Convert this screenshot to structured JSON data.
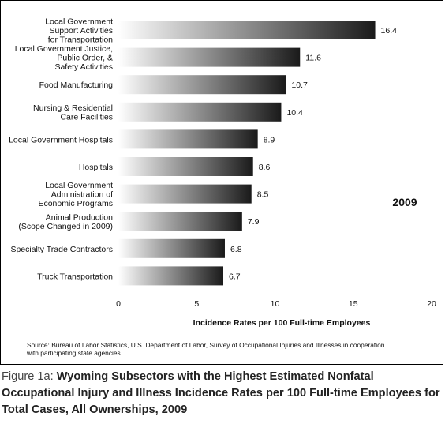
{
  "chart_data": {
    "type": "bar",
    "orientation": "horizontal",
    "categories": [
      [
        "Local Government",
        "Support Activities",
        "for Transportation"
      ],
      [
        "Local Government Justice,",
        "Public Order, &",
        "Safety Activities"
      ],
      [
        "Food Manufacturing"
      ],
      [
        "Nursing & Residential",
        "Care Facilities"
      ],
      [
        "Local Government Hospitals"
      ],
      [
        "Hospitals"
      ],
      [
        "Local Government",
        "Administration of",
        "Economic Programs"
      ],
      [
        "Animal Production",
        "(Scope Changed in 2009)"
      ],
      [
        "Specialty Trade Contractors"
      ],
      [
        "Truck Transportation"
      ]
    ],
    "values": [
      16.4,
      11.6,
      10.7,
      10.4,
      8.9,
      8.6,
      8.5,
      7.9,
      6.8,
      6.7
    ],
    "value_labels": [
      "16.4",
      "11.6",
      "10.7",
      "10.4",
      "8.9",
      "8.6",
      "8.5",
      "7.9",
      "6.8",
      "6.7"
    ],
    "xlabel": "Incidence Rates per 100 Full-time Employees",
    "xlim": [
      0,
      20
    ],
    "xticks": [
      "0",
      "5",
      "10",
      "15",
      "20"
    ],
    "grid": false,
    "annotation": "2009",
    "bar_gradient": [
      "#ffffff",
      "#1a1a1a"
    ]
  },
  "source_text": "Source: Bureau of Labor Statistics, U.S. Department of Labor, Survey of Occupational Injuries and Illnesses in cooperation with participating state agencies.",
  "caption": {
    "prefix": "Figure 1a: ",
    "title": "Wyoming Subsectors with the Highest Estimated Nonfatal Occupational Injury and Illness Incidence Rates per 100 Full-time Employees for Total Cases, All Ownerships, 2009"
  }
}
